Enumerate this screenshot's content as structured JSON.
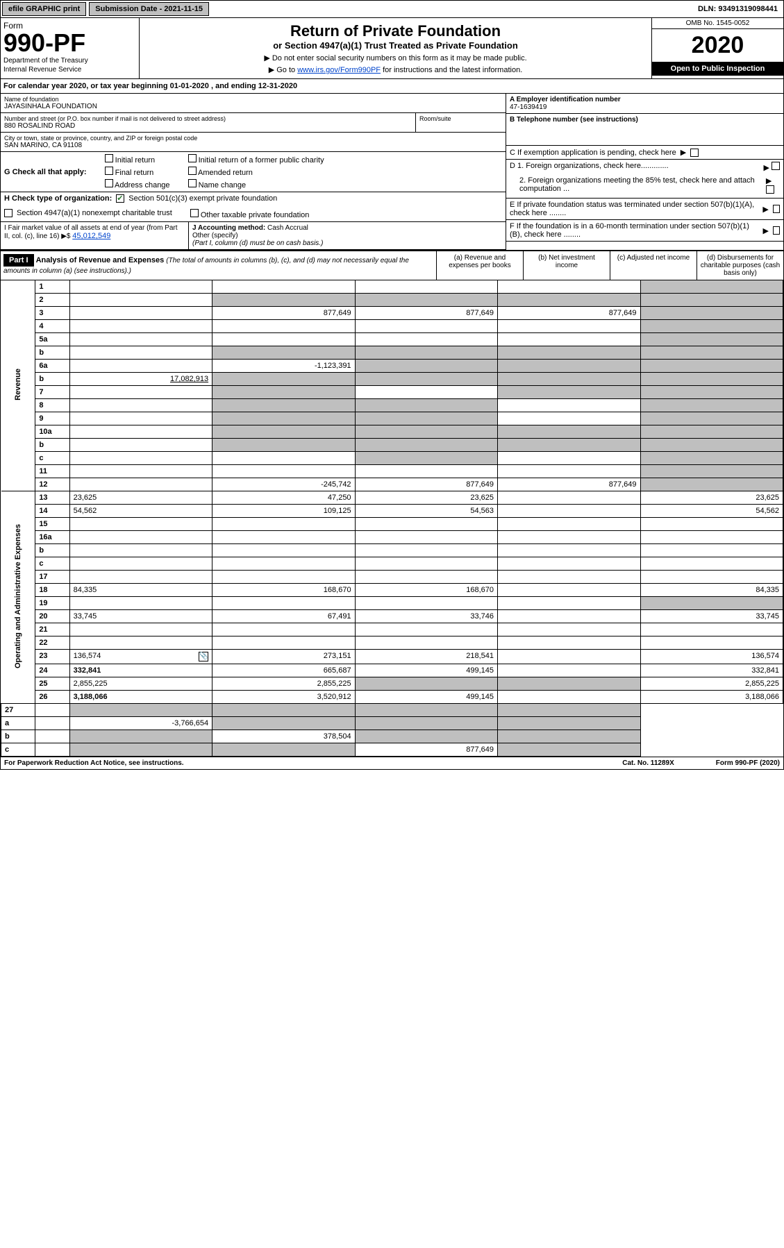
{
  "topbar": {
    "efile": "efile GRAPHIC print",
    "submission": "Submission Date - 2021-11-15",
    "dln": "DLN: 93491319098441"
  },
  "header": {
    "form_word": "Form",
    "form_num": "990-PF",
    "dept1": "Department of the Treasury",
    "dept2": "Internal Revenue Service",
    "title": "Return of Private Foundation",
    "sub": "or Section 4947(a)(1) Trust Treated as Private Foundation",
    "note1": "▶ Do not enter social security numbers on this form as it may be made public.",
    "note2a": "▶ Go to ",
    "note2_link": "www.irs.gov/Form990PF",
    "note2b": " for instructions and the latest information.",
    "omb": "OMB No. 1545-0052",
    "year": "2020",
    "open": "Open to Public Inspection"
  },
  "cal_year": "For calendar year 2020, or tax year beginning 01-01-2020                     , and ending 12-31-2020",
  "entity": {
    "name_lbl": "Name of foundation",
    "name": "JAYASINHALA FOUNDATION",
    "addr_lbl": "Number and street (or P.O. box number if mail is not delivered to street address)",
    "addr": "880 ROSALIND ROAD",
    "room_lbl": "Room/suite",
    "city_lbl": "City or town, state or province, country, and ZIP or foreign postal code",
    "city": "SAN MARINO, CA  91108",
    "ein_lbl": "A Employer identification number",
    "ein": "47-1639419",
    "tel_lbl": "B Telephone number (see instructions)",
    "c_lbl": "C If exemption application is pending, check here",
    "d1_lbl": "D 1. Foreign organizations, check here.............",
    "d2_lbl": "2. Foreign organizations meeting the 85% test, check here and attach computation ...",
    "e_lbl": "E If private foundation status was terminated under section 507(b)(1)(A), check here ........",
    "f_lbl": "F If the foundation is in a 60-month termination under section 507(b)(1)(B), check here ........"
  },
  "g": {
    "lbl": "G Check all that apply:",
    "initial": "Initial return",
    "final": "Final return",
    "addr_change": "Address change",
    "initial_former": "Initial return of a former public charity",
    "amended": "Amended return",
    "name_change": "Name change"
  },
  "h": {
    "lbl": "H Check type of organization:",
    "opt1": "Section 501(c)(3) exempt private foundation",
    "opt2": "Section 4947(a)(1) nonexempt charitable trust",
    "opt3": "Other taxable private foundation"
  },
  "i": {
    "lbl": "I Fair market value of all assets at end of year (from Part II, col. (c), line 16) ▶$",
    "val": "45,012,549"
  },
  "j": {
    "lbl": "J Accounting method:",
    "cash": "Cash",
    "accrual": "Accrual",
    "other": "Other (specify)",
    "note": "(Part I, column (d) must be on cash basis.)"
  },
  "part1": {
    "label": "Part I",
    "title": "Analysis of Revenue and Expenses",
    "note": " (The total of amounts in columns (b), (c), and (d) may not necessarily equal the amounts in column (a) (see instructions).)",
    "col_a": "(a) Revenue and expenses per books",
    "col_b": "(b) Net investment income",
    "col_c": "(c) Adjusted net income",
    "col_d": "(d) Disbursements for charitable purposes (cash basis only)"
  },
  "side": {
    "revenue": "Revenue",
    "expenses": "Operating and Administrative Expenses"
  },
  "rows": [
    {
      "n": "1",
      "d": "",
      "a": "",
      "b": "",
      "c": "",
      "d_shade": true
    },
    {
      "n": "2",
      "d": "",
      "a": "",
      "b": "",
      "c": "",
      "b_shade": true,
      "c_shade": true,
      "d_shade": true,
      "a_shade": true,
      "bold_word": "not"
    },
    {
      "n": "3",
      "d": "",
      "a": "877,649",
      "b": "877,649",
      "c": "877,649",
      "d_shade": true
    },
    {
      "n": "4",
      "d": "",
      "a": "",
      "b": "",
      "c": "",
      "d_shade": true
    },
    {
      "n": "5a",
      "d": "",
      "a": "",
      "b": "",
      "c": "",
      "d_shade": true
    },
    {
      "n": "b",
      "d": "",
      "a": "",
      "b": "",
      "c": "",
      "a_shade": true,
      "b_shade": true,
      "c_shade": true,
      "d_shade": true
    },
    {
      "n": "6a",
      "d": "",
      "a": "-1,123,391",
      "b": "",
      "c": "",
      "b_shade": true,
      "c_shade": true,
      "d_shade": true
    },
    {
      "n": "b",
      "d": "",
      "inline": "17,082,913",
      "a": "",
      "b": "",
      "c": "",
      "a_shade": true,
      "b_shade": true,
      "c_shade": true,
      "d_shade": true
    },
    {
      "n": "7",
      "d": "",
      "a": "",
      "b": "",
      "c": "",
      "a_shade": true,
      "c_shade": true,
      "d_shade": true
    },
    {
      "n": "8",
      "d": "",
      "a": "",
      "b": "",
      "c": "",
      "a_shade": true,
      "b_shade": true,
      "d_shade": true
    },
    {
      "n": "9",
      "d": "",
      "a": "",
      "b": "",
      "c": "",
      "a_shade": true,
      "b_shade": true,
      "d_shade": true
    },
    {
      "n": "10a",
      "d": "",
      "a": "",
      "b": "",
      "c": "",
      "a_shade": true,
      "b_shade": true,
      "c_shade": true,
      "d_shade": true
    },
    {
      "n": "b",
      "d": "",
      "a": "",
      "b": "",
      "c": "",
      "a_shade": true,
      "b_shade": true,
      "c_shade": true,
      "d_shade": true
    },
    {
      "n": "c",
      "d": "",
      "a": "",
      "b": "",
      "c": "",
      "b_shade": true,
      "d_shade": true
    },
    {
      "n": "11",
      "d": "",
      "a": "",
      "b": "",
      "c": "",
      "d_shade": true
    },
    {
      "n": "12",
      "d": "",
      "a": "-245,742",
      "b": "877,649",
      "c": "877,649",
      "d_shade": true,
      "bold": true
    }
  ],
  "exp_rows": [
    {
      "n": "13",
      "d": "23,625",
      "a": "47,250",
      "b": "23,625",
      "c": ""
    },
    {
      "n": "14",
      "d": "54,562",
      "a": "109,125",
      "b": "54,563",
      "c": ""
    },
    {
      "n": "15",
      "d": "",
      "a": "",
      "b": "",
      "c": ""
    },
    {
      "n": "16a",
      "d": "",
      "a": "",
      "b": "",
      "c": ""
    },
    {
      "n": "b",
      "d": "",
      "a": "",
      "b": "",
      "c": ""
    },
    {
      "n": "c",
      "d": "",
      "a": "",
      "b": "",
      "c": ""
    },
    {
      "n": "17",
      "d": "",
      "a": "",
      "b": "",
      "c": ""
    },
    {
      "n": "18",
      "d": "84,335",
      "a": "168,670",
      "b": "168,670",
      "c": ""
    },
    {
      "n": "19",
      "d": "",
      "a": "",
      "b": "",
      "c": "",
      "d_shade": true
    },
    {
      "n": "20",
      "d": "33,745",
      "a": "67,491",
      "b": "33,746",
      "c": ""
    },
    {
      "n": "21",
      "d": "",
      "a": "",
      "b": "",
      "c": ""
    },
    {
      "n": "22",
      "d": "",
      "a": "",
      "b": "",
      "c": ""
    },
    {
      "n": "23",
      "d": "136,574",
      "a": "273,151",
      "b": "218,541",
      "c": "",
      "attach": true
    },
    {
      "n": "24",
      "d": "332,841",
      "a": "665,687",
      "b": "499,145",
      "c": "",
      "bold": true
    },
    {
      "n": "25",
      "d": "2,855,225",
      "a": "2,855,225",
      "b": "",
      "c": "",
      "b_shade": true,
      "c_shade": true
    },
    {
      "n": "26",
      "d": "3,188,066",
      "a": "3,520,912",
      "b": "499,145",
      "c": "",
      "bold": true
    }
  ],
  "final_rows": [
    {
      "n": "27",
      "d": "",
      "a": "",
      "b": "",
      "c": "",
      "a_shade": true,
      "b_shade": true,
      "c_shade": true,
      "d_shade": true
    },
    {
      "n": "a",
      "d": "",
      "a": "-3,766,654",
      "b": "",
      "c": "",
      "b_shade": true,
      "c_shade": true,
      "d_shade": true,
      "bold": true
    },
    {
      "n": "b",
      "d": "",
      "a": "",
      "b": "378,504",
      "c": "",
      "a_shade": true,
      "c_shade": true,
      "d_shade": true,
      "bold": true
    },
    {
      "n": "c",
      "d": "",
      "a": "",
      "b": "",
      "c": "877,649",
      "a_shade": true,
      "b_shade": true,
      "d_shade": true,
      "bold": true
    }
  ],
  "footer": {
    "left": "For Paperwork Reduction Act Notice, see instructions.",
    "mid": "Cat. No. 11289X",
    "right": "Form 990-PF (2020)"
  }
}
